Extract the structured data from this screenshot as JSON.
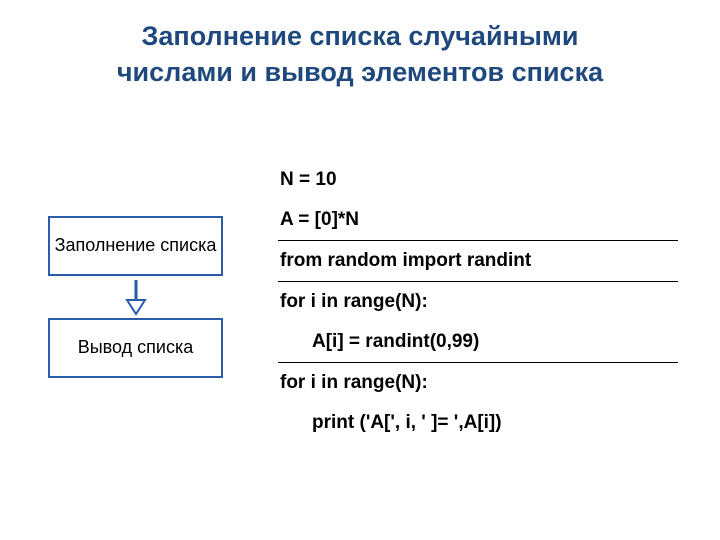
{
  "colors": {
    "title_color": "#1f497d",
    "box_border": "#2a5caa",
    "arrow_stroke": "#2a5caa",
    "arrow_fill": "#ffffff",
    "text": "#000000",
    "background": "#ffffff",
    "rule": "#000000"
  },
  "title": {
    "line1": "Заполнение списка случайными",
    "line2": "числами и вывод элементов списка",
    "fontsize": 27
  },
  "flowchart": {
    "box1": "Заполнение списка",
    "box2": "Вывод списка",
    "box_border_width": 2,
    "box_fontsize": 18
  },
  "code": {
    "fontsize": 19,
    "lines": [
      {
        "text": "N = 10",
        "indent": false,
        "rule_after": false
      },
      {
        "text": "A = [0]*N",
        "indent": false,
        "rule_after": true
      },
      {
        "text": "from random import randint",
        "indent": false,
        "rule_after": true
      },
      {
        "text": "for i in range(N):",
        "indent": false,
        "rule_after": false
      },
      {
        "text": "A[i] = randint(0,99)",
        "indent": true,
        "rule_after": true
      },
      {
        "text": "for i in range(N):",
        "indent": false,
        "rule_after": false
      },
      {
        "text": "print ('A[', i, ' ]= ',A[i])",
        "indent": true,
        "rule_after": false
      }
    ]
  }
}
